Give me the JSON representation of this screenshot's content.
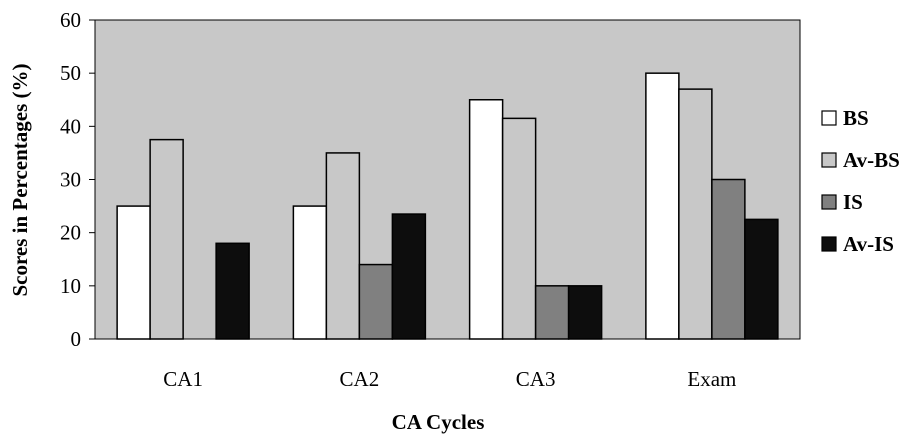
{
  "chart_data": {
    "type": "bar",
    "title": "",
    "xlabel": "CA Cycles",
    "ylabel": "Scores in Percentages (%)",
    "categories": [
      "CA1",
      "CA2",
      "CA3",
      "Exam"
    ],
    "ylim": [
      0,
      60
    ],
    "yticks": [
      "0",
      "10",
      "20",
      "30",
      "40",
      "50",
      "60"
    ],
    "grid": false,
    "legend_position": "right",
    "plot_background": "#c8c8c8",
    "series": [
      {
        "name": "BS",
        "color": "#ffffff",
        "values": [
          25,
          25,
          45,
          50
        ]
      },
      {
        "name": "Av-BS",
        "color": "#c8c8c8",
        "values": [
          37.5,
          35,
          41.5,
          47
        ]
      },
      {
        "name": "IS",
        "color": "#808080",
        "values": [
          null,
          14,
          10,
          30
        ]
      },
      {
        "name": "Av-IS",
        "color": "#0d0d0d",
        "values": [
          18,
          23.5,
          10,
          22.5
        ]
      }
    ]
  }
}
